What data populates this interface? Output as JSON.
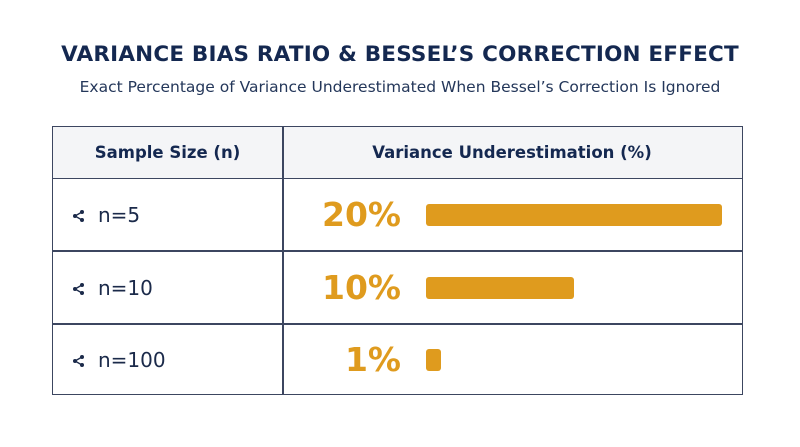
{
  "title": "VARIANCE BIAS RATIO & BESSEL’S CORRECTION EFFECT",
  "subtitle": "Exact Percentage of Variance Underestimated When Bessel’s Correction Is Ignored",
  "colors": {
    "bar": "#df9b1e",
    "text": "#142850",
    "border": "#3c4660"
  },
  "table": {
    "col1_header": "Sample Size (n)",
    "col2_header": "Variance Underestimation (%)"
  },
  "chart_data": {
    "type": "bar",
    "orientation": "horizontal",
    "title": "VARIANCE BIAS RATIO & BESSEL’S CORRECTION EFFECT",
    "subtitle": "Exact Percentage of Variance Underestimated When Bessel’s Correction Is Ignored",
    "categories": [
      "n=5",
      "n=10",
      "n=100"
    ],
    "values": [
      20,
      10,
      1
    ],
    "value_labels": [
      "20%",
      "10%",
      "1%"
    ],
    "xlim": [
      0,
      20
    ],
    "grid": false
  }
}
